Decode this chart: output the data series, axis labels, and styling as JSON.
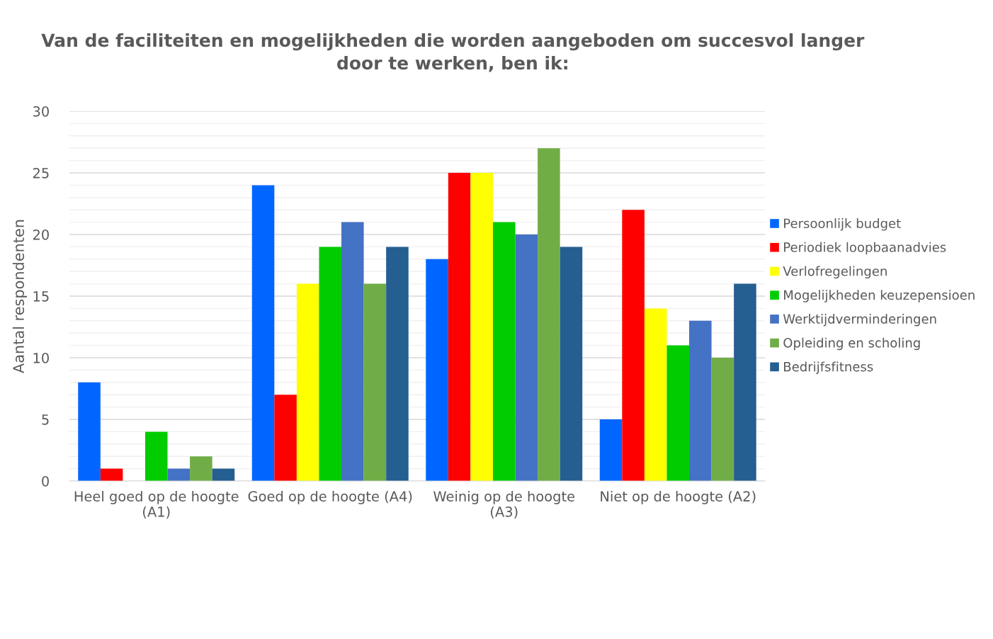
{
  "chart_data": {
    "type": "bar",
    "title": "Van de faciliteiten en mogelijkheden die worden aangeboden om succesvol langer\ndoor te werken, ben ik:",
    "ylabel": "Aantal respondenten",
    "categories": [
      "Heel goed op de hoogte\n(A1)",
      "Goed op de hoogte (A4)",
      "Weinig op de hoogte\n(A3)",
      "Niet op de hoogte (A2)"
    ],
    "series": [
      {
        "name": "Persoonlijk budget",
        "color": "#0066ff",
        "values": [
          8,
          24,
          18,
          5
        ]
      },
      {
        "name": "Periodiek loopbaanadvies",
        "color": "#ff0000",
        "values": [
          1,
          7,
          25,
          22
        ]
      },
      {
        "name": "Verlofregelingen",
        "color": "#ffff00",
        "values": [
          0,
          16,
          25,
          14
        ]
      },
      {
        "name": "Mogelijkheden keuzepensioen",
        "color": "#00cc00",
        "values": [
          4,
          19,
          21,
          11
        ]
      },
      {
        "name": "Werktijdverminderingen",
        "color": "#4472c4",
        "values": [
          1,
          21,
          20,
          13
        ]
      },
      {
        "name": "Opleiding en scholing",
        "color": "#70ad47",
        "values": [
          2,
          16,
          27,
          10
        ]
      },
      {
        "name": "Bedrijfsfitness",
        "color": "#255e91",
        "values": [
          1,
          19,
          19,
          16
        ]
      }
    ],
    "ylim": [
      0,
      30
    ],
    "yticks": [
      0,
      {
        "value": 1,
        "label": null
      },
      {
        "value": 2,
        "label": null
      },
      {
        "value": 3,
        "label": null
      },
      {
        "value": 4,
        "label": null
      },
      5,
      {
        "value": 6,
        "label": null
      },
      {
        "value": 7,
        "label": null
      },
      {
        "value": 8,
        "label": null
      },
      {
        "value": 9,
        "label": null
      },
      10,
      {
        "value": 11,
        "label": null
      },
      {
        "value": 12,
        "label": null
      },
      {
        "value": 13,
        "label": null
      },
      {
        "value": 14,
        "label": null
      },
      15,
      {
        "value": 16,
        "label": null
      },
      {
        "value": 17,
        "label": null
      },
      {
        "value": 18,
        "label": null
      },
      {
        "value": 19,
        "label": null
      },
      20,
      {
        "value": 21,
        "label": null
      },
      {
        "value": 22,
        "label": null
      },
      {
        "value": 23,
        "label": null
      },
      {
        "value": 24,
        "label": null
      },
      25,
      {
        "value": 26,
        "label": null
      },
      {
        "value": 27,
        "label": null
      },
      {
        "value": 28,
        "label": null
      },
      {
        "value": 29,
        "label": null
      },
      30
    ],
    "grid": "y",
    "legend": "right"
  }
}
